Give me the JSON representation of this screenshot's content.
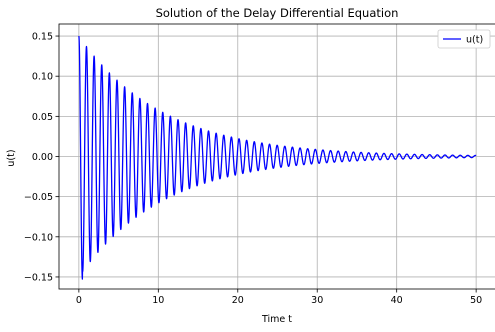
{
  "chart_data": {
    "type": "line",
    "title": "Solution of the Delay Differential Equation",
    "xlabel": "Time t",
    "ylabel": "u(t)",
    "xlim": [
      -2.5,
      52.5
    ],
    "ylim": [
      -0.165,
      0.165
    ],
    "xticks": [
      0,
      10,
      20,
      30,
      40,
      50
    ],
    "yticks": [
      -0.15,
      -0.1,
      -0.05,
      0.0,
      0.05,
      0.1,
      0.15
    ],
    "xtick_labels": [
      "0",
      "10",
      "20",
      "30",
      "40",
      "50"
    ],
    "ytick_labels": [
      "−0.15",
      "−0.10",
      "−0.05",
      "0.00",
      "0.05",
      "0.10",
      "0.15"
    ],
    "grid": true,
    "legend_position": "top-right",
    "series": [
      {
        "name": "u(t)",
        "color": "#0000ff",
        "t_start": 0,
        "t_end": 50,
        "sample_step": 0.02,
        "amplitude_start": 0.15,
        "first_trough": {
          "x": 0.45,
          "y": -0.153
        },
        "decay_rate": 0.095,
        "period": 0.96,
        "peaks": [
          {
            "x": 0.0,
            "y": 0.148
          },
          {
            "x": 0.96,
            "y": 0.143
          },
          {
            "x": 1.92,
            "y": 0.13
          },
          {
            "x": 2.88,
            "y": 0.118
          },
          {
            "x": 3.84,
            "y": 0.107
          },
          {
            "x": 4.8,
            "y": 0.095
          },
          {
            "x": 9.6,
            "y": 0.062
          },
          {
            "x": 14.4,
            "y": 0.038
          },
          {
            "x": 19.2,
            "y": 0.024
          },
          {
            "x": 24.0,
            "y": 0.015
          },
          {
            "x": 28.8,
            "y": 0.009
          },
          {
            "x": 33.6,
            "y": 0.006
          },
          {
            "x": 38.4,
            "y": 0.004
          },
          {
            "x": 43.2,
            "y": 0.002
          },
          {
            "x": 48.0,
            "y": 0.001
          }
        ]
      }
    ],
    "axis_color": "#000000",
    "grid_color": "#b0b0b0",
    "legend_border_color": "#cccccc"
  }
}
